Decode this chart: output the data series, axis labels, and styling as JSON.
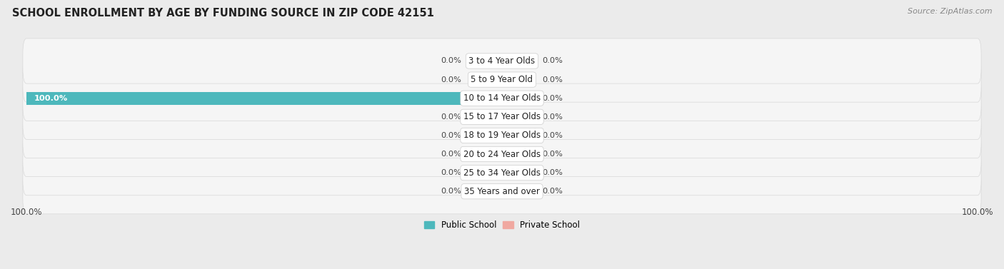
{
  "title": "SCHOOL ENROLLMENT BY AGE BY FUNDING SOURCE IN ZIP CODE 42151",
  "source": "Source: ZipAtlas.com",
  "categories": [
    "3 to 4 Year Olds",
    "5 to 9 Year Old",
    "10 to 14 Year Olds",
    "15 to 17 Year Olds",
    "18 to 19 Year Olds",
    "20 to 24 Year Olds",
    "25 to 34 Year Olds",
    "35 Years and over"
  ],
  "public_values": [
    0.0,
    0.0,
    100.0,
    0.0,
    0.0,
    0.0,
    0.0,
    0.0
  ],
  "private_values": [
    0.0,
    0.0,
    0.0,
    0.0,
    0.0,
    0.0,
    0.0,
    0.0
  ],
  "public_color": "#4db8bc",
  "private_color": "#f0a8a0",
  "public_stub_color": "#8ed0d3",
  "background_color": "#ebebeb",
  "row_bg_color": "#f5f5f5",
  "row_edge_color": "#d8d8d8",
  "bar_height": 0.68,
  "stub_size": 7.0,
  "xlim_left": -100,
  "xlim_right": 100,
  "title_fontsize": 10.5,
  "label_fontsize": 8.2,
  "tick_fontsize": 8.5,
  "source_fontsize": 8.0,
  "legend_fontsize": 8.5,
  "cat_label_fontsize": 8.5
}
